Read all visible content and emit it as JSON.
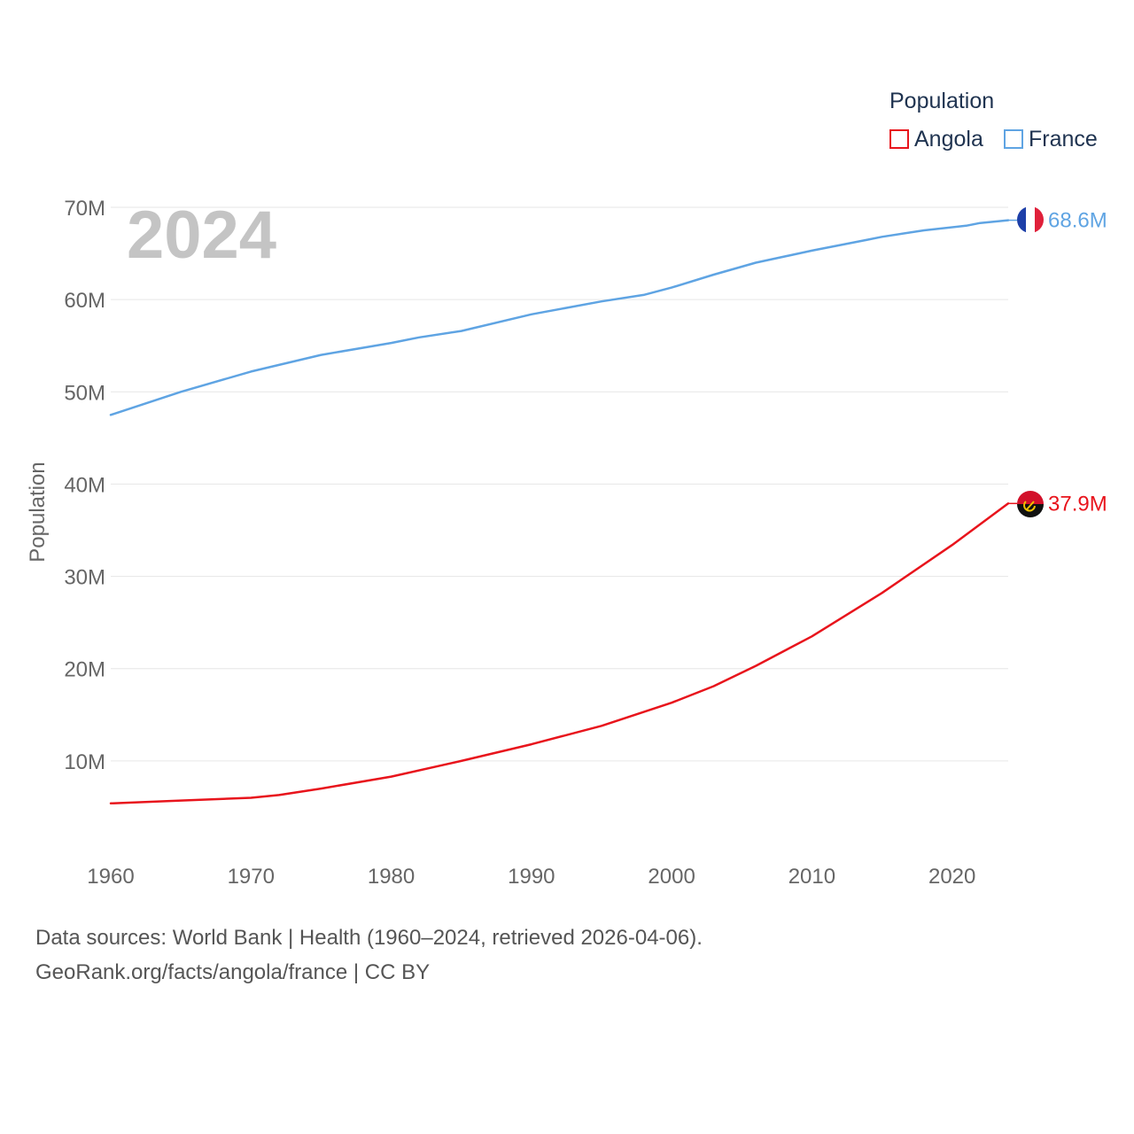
{
  "legend": {
    "title": "Population",
    "items": [
      {
        "label": "Angola",
        "color": "#e8141c"
      },
      {
        "label": "France",
        "color": "#5fa4e3"
      }
    ]
  },
  "year_label": "2024",
  "footer": {
    "line1": "Data sources: World Bank | Health (1960–2024, retrieved 2026-04-06).",
    "line2": "GeoRank.org/facts/angola/france | CC BY"
  },
  "chart_data": {
    "type": "line",
    "title": "",
    "xlabel": "",
    "ylabel": "Population",
    "xlim": [
      1960,
      2024
    ],
    "ylim": [
      0,
      70000000
    ],
    "x_ticks": [
      1960,
      1970,
      1980,
      1990,
      2000,
      2010,
      2020
    ],
    "y_ticks": [
      10000000,
      20000000,
      30000000,
      40000000,
      50000000,
      60000000,
      70000000
    ],
    "y_tick_labels": [
      "10M",
      "20M",
      "30M",
      "40M",
      "50M",
      "60M",
      "70M"
    ],
    "grid": true,
    "series": [
      {
        "name": "France",
        "color": "#5fa4e3",
        "end_label": "68.6M",
        "flag": "france-flag",
        "x": [
          1960,
          1965,
          1970,
          1975,
          1980,
          1982,
          1985,
          1990,
          1995,
          1998,
          2000,
          2003,
          2006,
          2010,
          2014,
          2015,
          2018,
          2021,
          2022,
          2024
        ],
        "values": [
          47500000,
          50000000,
          52200000,
          54000000,
          55300000,
          55900000,
          56600000,
          58400000,
          59800000,
          60500000,
          61300000,
          62700000,
          64000000,
          65300000,
          66500000,
          66800000,
          67500000,
          68000000,
          68300000,
          68600000
        ]
      },
      {
        "name": "Angola",
        "color": "#e8141c",
        "end_label": "37.9M",
        "flag": "angola-flag",
        "x": [
          1960,
          1965,
          1970,
          1972,
          1975,
          1980,
          1985,
          1990,
          1995,
          2000,
          2003,
          2006,
          2010,
          2015,
          2020,
          2024
        ],
        "values": [
          5400000,
          5700000,
          6000000,
          6300000,
          7000000,
          8300000,
          10000000,
          11800000,
          13800000,
          16300000,
          18100000,
          20300000,
          23500000,
          28200000,
          33400000,
          37900000
        ]
      }
    ]
  }
}
